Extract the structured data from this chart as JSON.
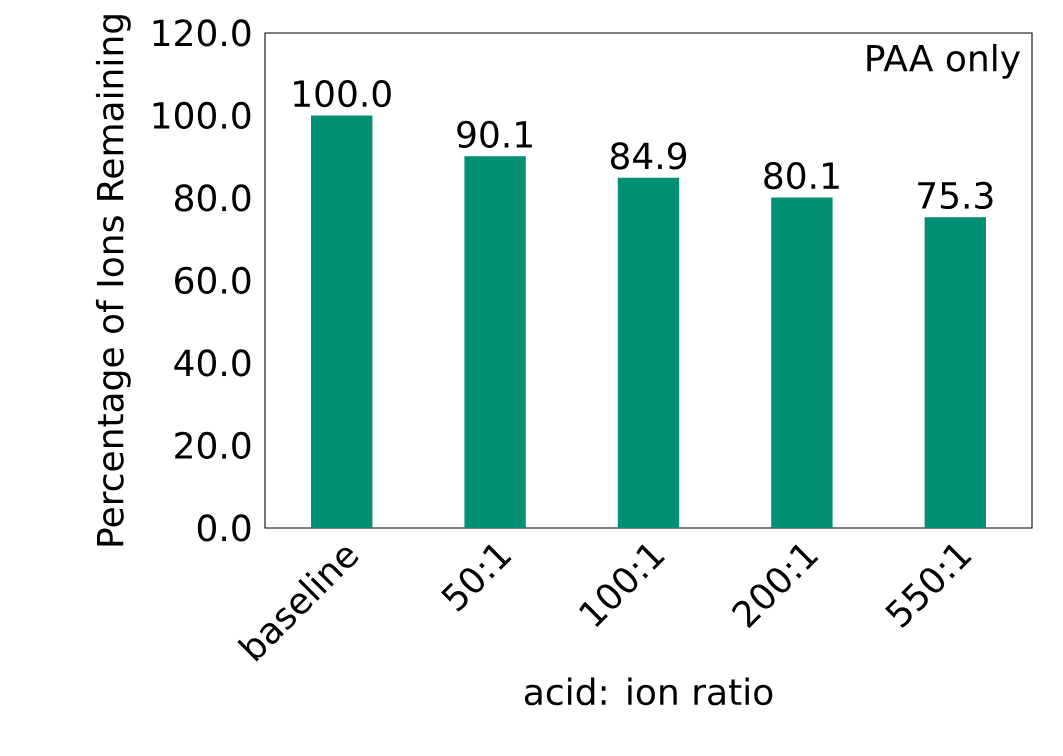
{
  "chart_data": {
    "type": "bar",
    "xlabel": "acid: ion ratio",
    "ylabel": "Percentage of Ions Remaining",
    "categories": [
      "baseline",
      "50:1",
      "100:1",
      "200:1",
      "550:1"
    ],
    "values": [
      100.0,
      90.1,
      84.9,
      80.1,
      75.3
    ],
    "value_labels": [
      "100.0",
      "90.1",
      "84.9",
      "80.1",
      "75.3"
    ],
    "color": "#008f72",
    "ylim": [
      0,
      120
    ],
    "yticks": [
      {
        "value": 0,
        "label": "0.0"
      },
      {
        "value": 20,
        "label": "20.0"
      },
      {
        "value": 40,
        "label": "40.0"
      },
      {
        "value": 60,
        "label": "60.0"
      },
      {
        "value": 80,
        "label": "80.0"
      },
      {
        "value": 100,
        "label": "100.0"
      },
      {
        "value": 120,
        "label": "120.0"
      }
    ],
    "annotations": [
      "PAA only"
    ]
  }
}
